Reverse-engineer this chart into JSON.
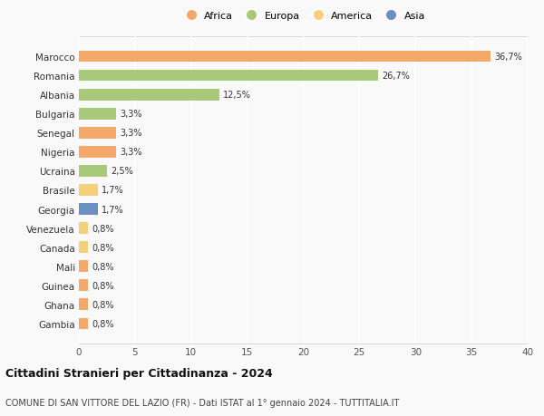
{
  "countries": [
    "Marocco",
    "Romania",
    "Albania",
    "Bulgaria",
    "Senegal",
    "Nigeria",
    "Ucraina",
    "Brasile",
    "Georgia",
    "Venezuela",
    "Canada",
    "Mali",
    "Guinea",
    "Ghana",
    "Gambia"
  ],
  "values": [
    36.7,
    26.7,
    12.5,
    3.3,
    3.3,
    3.3,
    2.5,
    1.7,
    1.7,
    0.8,
    0.8,
    0.8,
    0.8,
    0.8,
    0.8
  ],
  "labels": [
    "36,7%",
    "26,7%",
    "12,5%",
    "3,3%",
    "3,3%",
    "3,3%",
    "2,5%",
    "1,7%",
    "1,7%",
    "0,8%",
    "0,8%",
    "0,8%",
    "0,8%",
    "0,8%",
    "0,8%"
  ],
  "continents": [
    "Africa",
    "Europa",
    "Europa",
    "Europa",
    "Africa",
    "Africa",
    "Europa",
    "America",
    "Asia",
    "America",
    "America",
    "Africa",
    "Africa",
    "Africa",
    "Africa"
  ],
  "continent_colors": {
    "Africa": "#F4A96A",
    "Europa": "#A8C87A",
    "America": "#F5D07A",
    "Asia": "#6A8FC0"
  },
  "legend_order": [
    "Africa",
    "Europa",
    "America",
    "Asia"
  ],
  "xlim": [
    0,
    40
  ],
  "xticks": [
    0,
    5,
    10,
    15,
    20,
    25,
    30,
    35,
    40
  ],
  "title": "Cittadini Stranieri per Cittadinanza - 2024",
  "subtitle": "COMUNE DI SAN VITTORE DEL LAZIO (FR) - Dati ISTAT al 1° gennaio 2024 - TUTTITALIA.IT",
  "background_color": "#f9f9f9",
  "grid_color": "#ffffff",
  "bar_height": 0.6
}
